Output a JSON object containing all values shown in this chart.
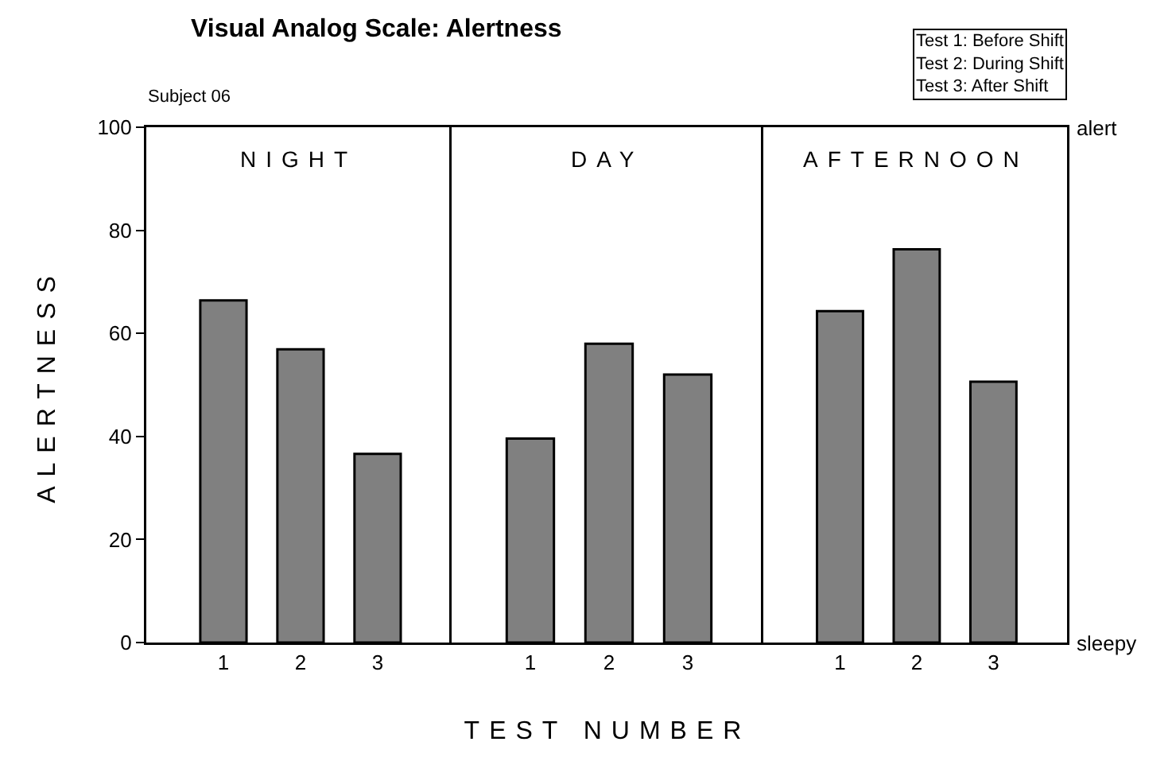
{
  "chart_data": [
    {
      "type": "bar",
      "title": "Visual Analog Scale: Alertness",
      "subtitle": "Subject 06",
      "ylabel": "ALERTNESS",
      "annotations": [
        "NIGHT"
      ],
      "categories": [
        "1",
        "2",
        "3"
      ],
      "values": [
        66.4,
        56.9,
        36.6
      ],
      "color": "#808080",
      "ylim": [
        0,
        100
      ],
      "yticks": [
        0,
        20,
        40,
        60,
        80,
        100
      ]
    },
    {
      "type": "bar",
      "xlabel": "TEST NUMBER",
      "annotations": [
        "DAY"
      ],
      "categories": [
        "1",
        "2",
        "3"
      ],
      "values": [
        39.6,
        58.0,
        52.0
      ],
      "color": "#808080",
      "ylim": [
        0,
        100
      ],
      "yticks": [
        0,
        20,
        40,
        60,
        80,
        100
      ],
      "tick_labels": "x"
    },
    {
      "type": "bar",
      "annotations": [
        "AFTERNOON",
        "Test 1: Before Shift\nTest 2: During Shift\nTest 3: After Shift",
        "alert",
        "sleepy"
      ],
      "categories": [
        "1",
        "2",
        "3"
      ],
      "values": [
        64.3,
        76.3,
        50.6
      ],
      "color": "#808080",
      "ylim": [
        0,
        100
      ],
      "yticks": [
        0,
        20,
        40,
        60,
        80,
        100
      ],
      "tick_labels": "x"
    }
  ]
}
